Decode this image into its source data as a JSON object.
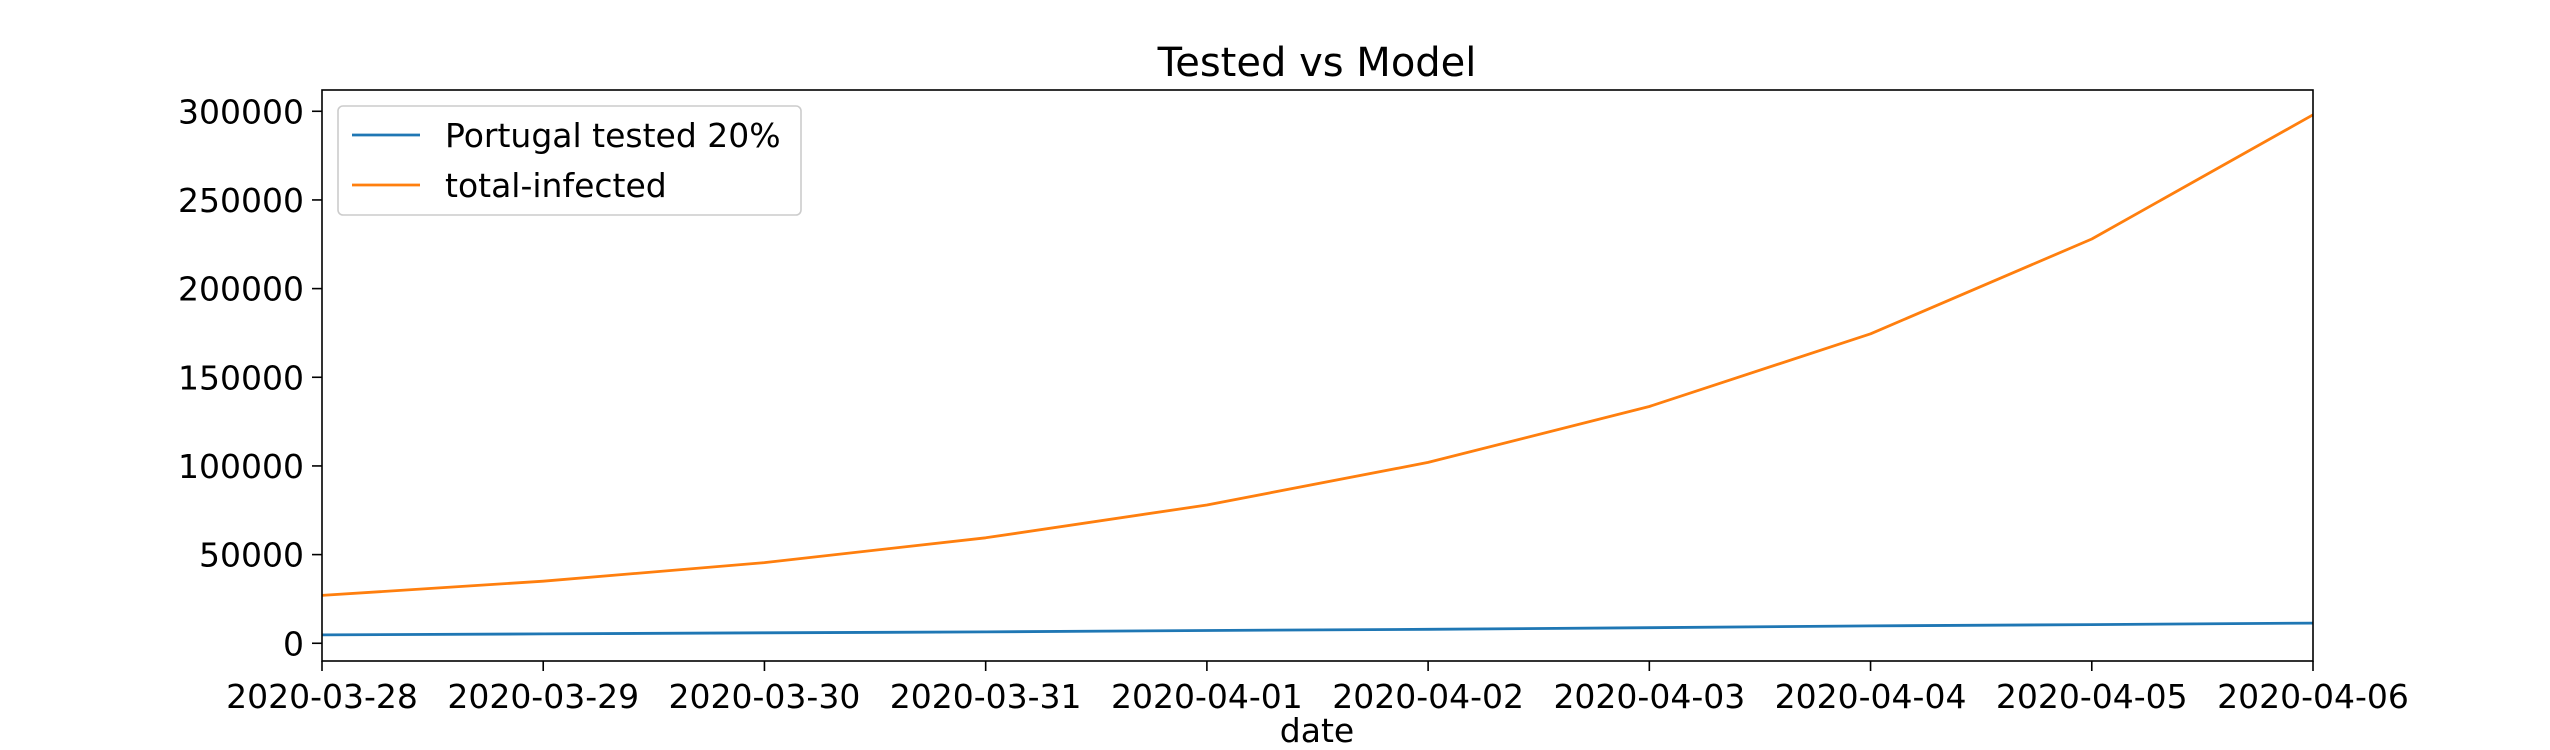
{
  "chart_data": {
    "type": "line",
    "title": "Tested vs Model",
    "xlabel": "date",
    "ylabel": "",
    "x": [
      "2020-03-28",
      "2020-03-29",
      "2020-03-30",
      "2020-03-31",
      "2020-04-01",
      "2020-04-02",
      "2020-04-03",
      "2020-04-04",
      "2020-04-05",
      "2020-04-06"
    ],
    "series": [
      {
        "name": "Portugal tested 20%",
        "color": "#1f77b4",
        "values": [
          4700,
          5300,
          5900,
          6400,
          7200,
          7900,
          8800,
          9800,
          10500,
          11400
        ]
      },
      {
        "name": "total-infected",
        "color": "#ff7f0e",
        "values": [
          27000,
          35000,
          45500,
          59500,
          78000,
          102000,
          133500,
          174500,
          228000,
          298000
        ]
      }
    ],
    "yticks": [
      "0",
      "50000",
      "100000",
      "150000",
      "200000",
      "250000",
      "300000"
    ],
    "ylim": [
      -10000,
      312000
    ],
    "grid": false,
    "legend_position": "top-left"
  }
}
